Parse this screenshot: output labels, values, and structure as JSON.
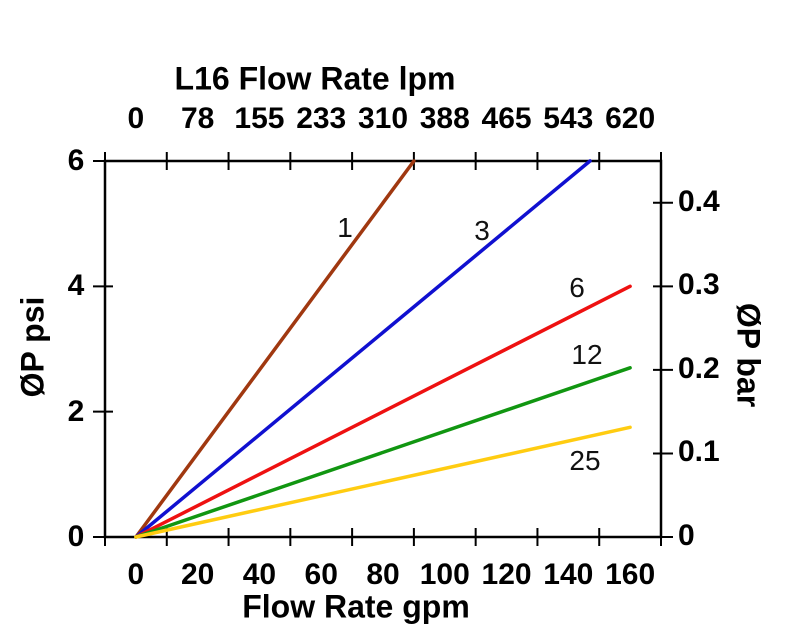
{
  "page": {
    "background": "#ffffff"
  },
  "chart_data": {
    "type": "line",
    "title": "L16 Flow Rate lpm",
    "grid": false,
    "legend": "inline curve labels",
    "x_top": {
      "tick_labels": [
        "0",
        "78",
        "155",
        "233",
        "310",
        "388",
        "465",
        "543",
        "620"
      ],
      "unit": "lpm"
    },
    "x_bottom": {
      "title": "Flow Rate gpm",
      "tick_labels": [
        "0",
        "20",
        "40",
        "60",
        "80",
        "100",
        "120",
        "140",
        "160"
      ],
      "unit": "gpm",
      "label_values_gpm": [
        0,
        20,
        40,
        60,
        80,
        100,
        120,
        140,
        160
      ]
    },
    "y_left": {
      "title": "ØP psi",
      "tick_labels": [
        "0",
        "2",
        "4",
        "6"
      ],
      "tick_values_psi": [
        0,
        2,
        4,
        6
      ],
      "range": [
        0,
        6
      ]
    },
    "y_right": {
      "title": "ØP bar",
      "tick_labels": [
        "0",
        "0.1",
        "0.2",
        "0.3",
        "0.4"
      ],
      "tick_values_bar": [
        0,
        0.1,
        0.2,
        0.3,
        0.4
      ],
      "range": [
        0,
        0.45
      ]
    },
    "series": [
      {
        "name": "1",
        "color": "#A03810",
        "points_gpm_psi": [
          [
            0,
            0
          ],
          [
            90,
            6
          ]
        ],
        "label_pos": {
          "x": 345,
          "y": 228
        }
      },
      {
        "name": "3",
        "color": "#1010D0",
        "points_gpm_psi": [
          [
            0,
            0
          ],
          [
            147,
            6
          ]
        ],
        "label_pos": {
          "x": 482,
          "y": 231
        }
      },
      {
        "name": "6",
        "color": "#EE1111",
        "points_gpm_psi": [
          [
            0,
            0
          ],
          [
            160,
            4.0
          ]
        ],
        "label_pos": {
          "x": 577,
          "y": 288
        }
      },
      {
        "name": "12",
        "color": "#119611",
        "points_gpm_psi": [
          [
            0,
            0
          ],
          [
            160,
            2.7
          ]
        ],
        "label_pos": {
          "x": 587,
          "y": 355
        }
      },
      {
        "name": "25",
        "color": "#FFCC11",
        "points_gpm_psi": [
          [
            0,
            0
          ],
          [
            160,
            1.75
          ]
        ],
        "label_pos": {
          "x": 585,
          "y": 461
        }
      }
    ]
  }
}
